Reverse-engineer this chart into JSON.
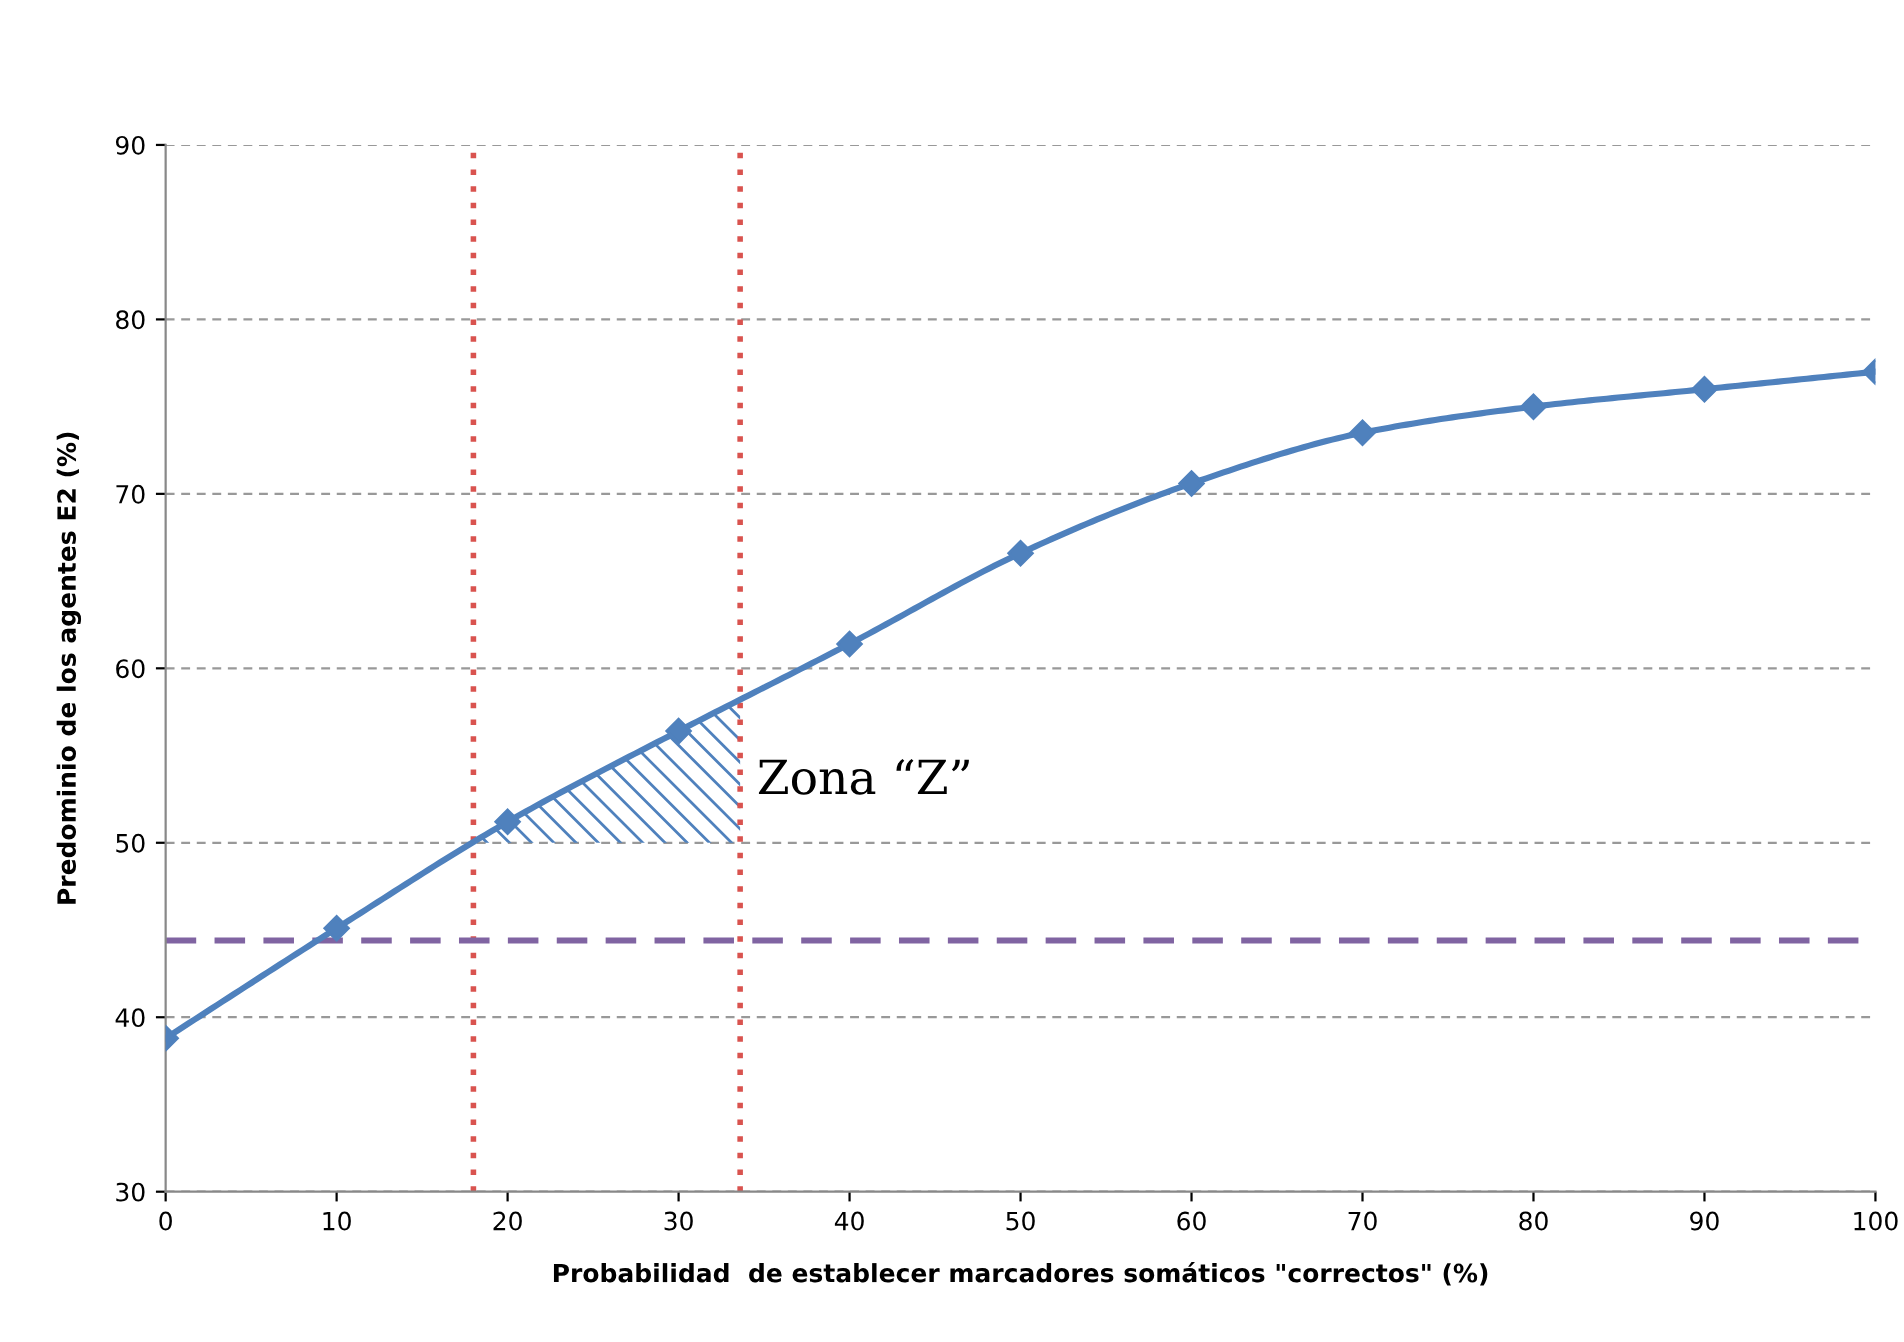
{
  "chart_data": {
    "type": "line",
    "xlabel": "Probabilidad  de establecer marcadores somáticos \"correctos\" (%)",
    "ylabel": "Predominio de los agentes E2 (%)",
    "x": [
      0,
      10,
      20,
      30,
      40,
      50,
      60,
      70,
      80,
      90,
      100
    ],
    "series": [
      {
        "color": "#4f81bd",
        "values": [
          38.8,
          45.1,
          51.2,
          56.4,
          61.4,
          66.6,
          70.6,
          73.5,
          75.0,
          76.0,
          77.0
        ]
      }
    ],
    "marker": "diamond",
    "line_style": "solid",
    "grid": "y",
    "legend": false,
    "xlim": [
      0,
      100
    ],
    "xticks": [
      0,
      10,
      20,
      30,
      40,
      50,
      60,
      70,
      80,
      90,
      100
    ],
    "ylim": [
      30,
      90
    ],
    "yticks": [
      30,
      40,
      50,
      60,
      70,
      80,
      90
    ],
    "ref_lines": [
      {
        "axis": "x",
        "value": 18,
        "color": "#d9534f",
        "line_style": "dotted"
      },
      {
        "axis": "x",
        "value": 33.6,
        "color": "#d9534f",
        "line_style": "dotted"
      },
      {
        "axis": "y",
        "value": 44.4,
        "color": "#8064a2",
        "line_style": "dashed"
      }
    ],
    "annotations": [
      {
        "text": "Zona “Z”",
        "x": 33.6,
        "y": 50
      }
    ]
  }
}
